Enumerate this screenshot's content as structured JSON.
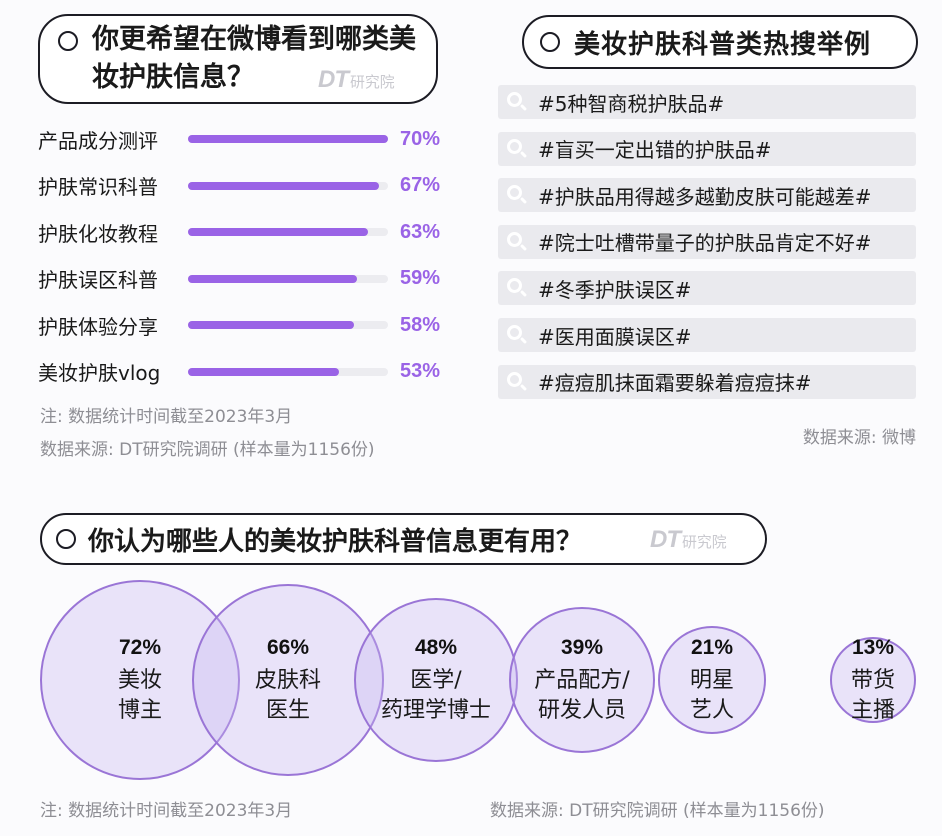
{
  "left_panel": {
    "title": "你更希望在微博看到哪类美妆护肤信息？",
    "watermark": {
      "main": "DT",
      "sub": "研究院"
    },
    "note": "注: 数据统计时间截至2023年3月",
    "source": "数据来源: DT研究院调研 (样本量为1156份)"
  },
  "right_panel": {
    "title": "美妆护肤科普类热搜举例",
    "items": [
      "#5种智商税护肤品#",
      "#盲买一定出错的护肤品#",
      "#护肤品用得越多越勤皮肤可能越差#",
      "#院士吐槽带量子的护肤品肯定不好#",
      "#冬季护肤误区#",
      "#医用面膜误区#",
      "#痘痘肌抹面霜要躲着痘痘抹#"
    ],
    "source": "数据来源: 微博"
  },
  "bottom_panel": {
    "title": "你认为哪些人的美妆护肤科普信息更有用？",
    "watermark": {
      "main": "DT",
      "sub": "研究院"
    },
    "note": "注: 数据统计时间截至2023年3月",
    "source": "数据来源: DT研究院调研 (样本量为1156份)"
  },
  "colors": {
    "accent": "#9a63e6",
    "track": "#ececf0",
    "bubble_stroke": "#9a75d6",
    "bubble_fill": "#ece4fb"
  },
  "chart_data": [
    {
      "type": "bar",
      "orientation": "horizontal",
      "title": "你更希望在微博看到哪类美妆护肤信息？",
      "categories": [
        "产品成分测评",
        "护肤常识科普",
        "护肤化妆教程",
        "护肤误区科普",
        "护肤体验分享",
        "美妆护肤vlog"
      ],
      "values": [
        70,
        67,
        63,
        59,
        58,
        53
      ],
      "labels": [
        "70%",
        "67%",
        "63%",
        "59%",
        "58%",
        "53%"
      ],
      "unit": "%",
      "xlim": [
        0,
        70
      ]
    },
    {
      "type": "bubble",
      "title": "你认为哪些人的美妆护肤科普信息更有用？",
      "categories": [
        "美妆博主",
        "皮肤科医生",
        "医学/药理学博士",
        "产品配方/研发人员",
        "明星艺人",
        "带货主播"
      ],
      "label_lines": [
        [
          "美妆",
          "博主"
        ],
        [
          "皮肤科",
          "医生"
        ],
        [
          "医学/",
          "药理学博士"
        ],
        [
          "产品配方/",
          "研发人员"
        ],
        [
          "明星",
          "艺人"
        ],
        [
          "带货",
          "主播"
        ]
      ],
      "values": [
        72,
        66,
        48,
        39,
        21,
        13
      ],
      "labels": [
        "72%",
        "66%",
        "48%",
        "39%",
        "21%",
        "13%"
      ],
      "unit": "%"
    }
  ]
}
